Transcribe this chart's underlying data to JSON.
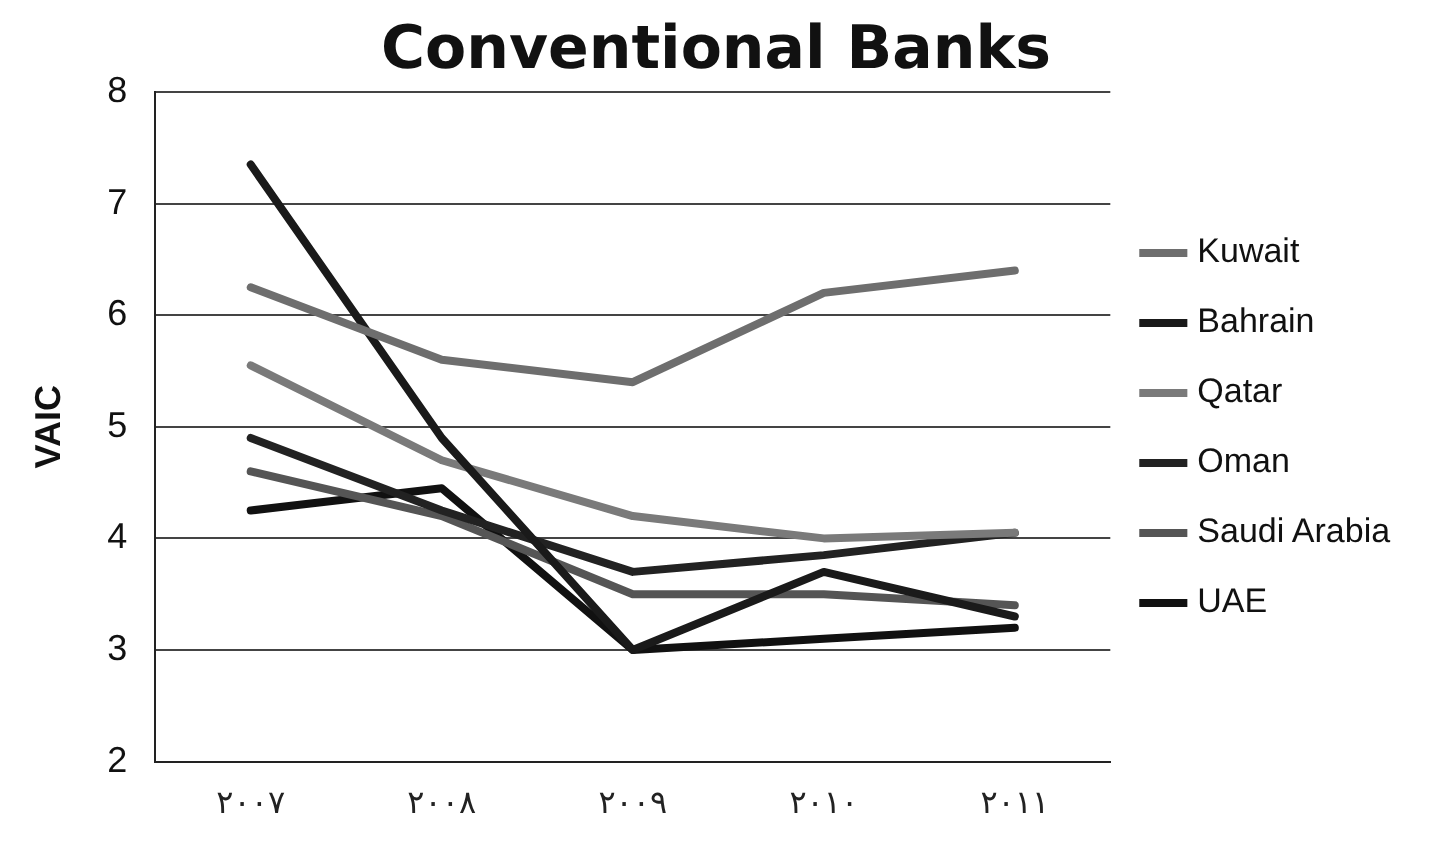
{
  "chart_data": {
    "type": "line",
    "title": "Conventional Banks",
    "ylabel": "VAIC",
    "categories": [
      "٢٠٠٧",
      "٢٠٠٨",
      "٢٠٠٩",
      "٢٠١٠",
      "٢٠١١"
    ],
    "series": [
      {
        "name": "Kuwait",
        "color": "#6e6e6e",
        "values": [
          6.25,
          5.6,
          5.4,
          6.2,
          6.4
        ]
      },
      {
        "name": "Bahrain",
        "color": "#1a1a1a",
        "values": [
          7.35,
          4.9,
          3.0,
          3.7,
          3.3
        ]
      },
      {
        "name": "Qatar",
        "color": "#7a7a7a",
        "values": [
          5.55,
          4.7,
          4.2,
          4.0,
          4.05
        ]
      },
      {
        "name": "Oman",
        "color": "#222222",
        "values": [
          4.9,
          4.25,
          3.7,
          3.85,
          4.05
        ]
      },
      {
        "name": "Saudi Arabia",
        "color": "#555555",
        "values": [
          4.6,
          4.2,
          3.5,
          3.5,
          3.4
        ]
      },
      {
        "name": "UAE",
        "color": "#111111",
        "values": [
          4.25,
          4.45,
          3.0,
          3.1,
          3.2
        ]
      }
    ],
    "ylim": [
      2,
      8
    ],
    "yticks": [
      2,
      3,
      4,
      5,
      6,
      7,
      8
    ],
    "grid": "y",
    "legend": "right",
    "marker": "none",
    "line_style": "solid"
  }
}
